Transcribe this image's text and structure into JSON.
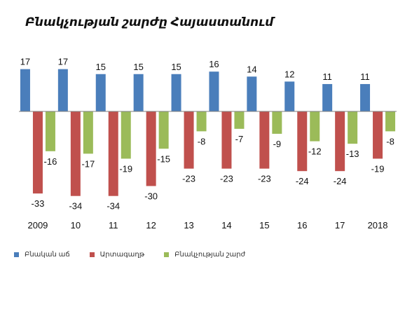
{
  "chart_data": {
    "type": "bar",
    "title": "Բնակչության շարժը Հայաստանում",
    "categories": [
      "2009",
      "10",
      "11",
      "12",
      "13",
      "14",
      "15",
      "16",
      "17",
      "2018"
    ],
    "series": [
      {
        "name": "Բնական աճ",
        "color": "#4a7ebb",
        "values": [
          17,
          17,
          15,
          15,
          15,
          16,
          14,
          12,
          11,
          11
        ]
      },
      {
        "name": "Արտագաղթ",
        "color": "#c0504d",
        "values": [
          -33,
          -34,
          -34,
          -30,
          -23,
          -23,
          -23,
          -24,
          -24,
          -19
        ]
      },
      {
        "name": "Բնակչության շարժ",
        "color": "#9bbb59",
        "values": [
          -16,
          -17,
          -19,
          -15,
          -8,
          -7,
          -9,
          -12,
          -13,
          -8
        ]
      }
    ],
    "ylim": [
      -36,
      20
    ],
    "grid": false,
    "legend_position": "bottom-left",
    "xlabel": "",
    "ylabel": ""
  }
}
